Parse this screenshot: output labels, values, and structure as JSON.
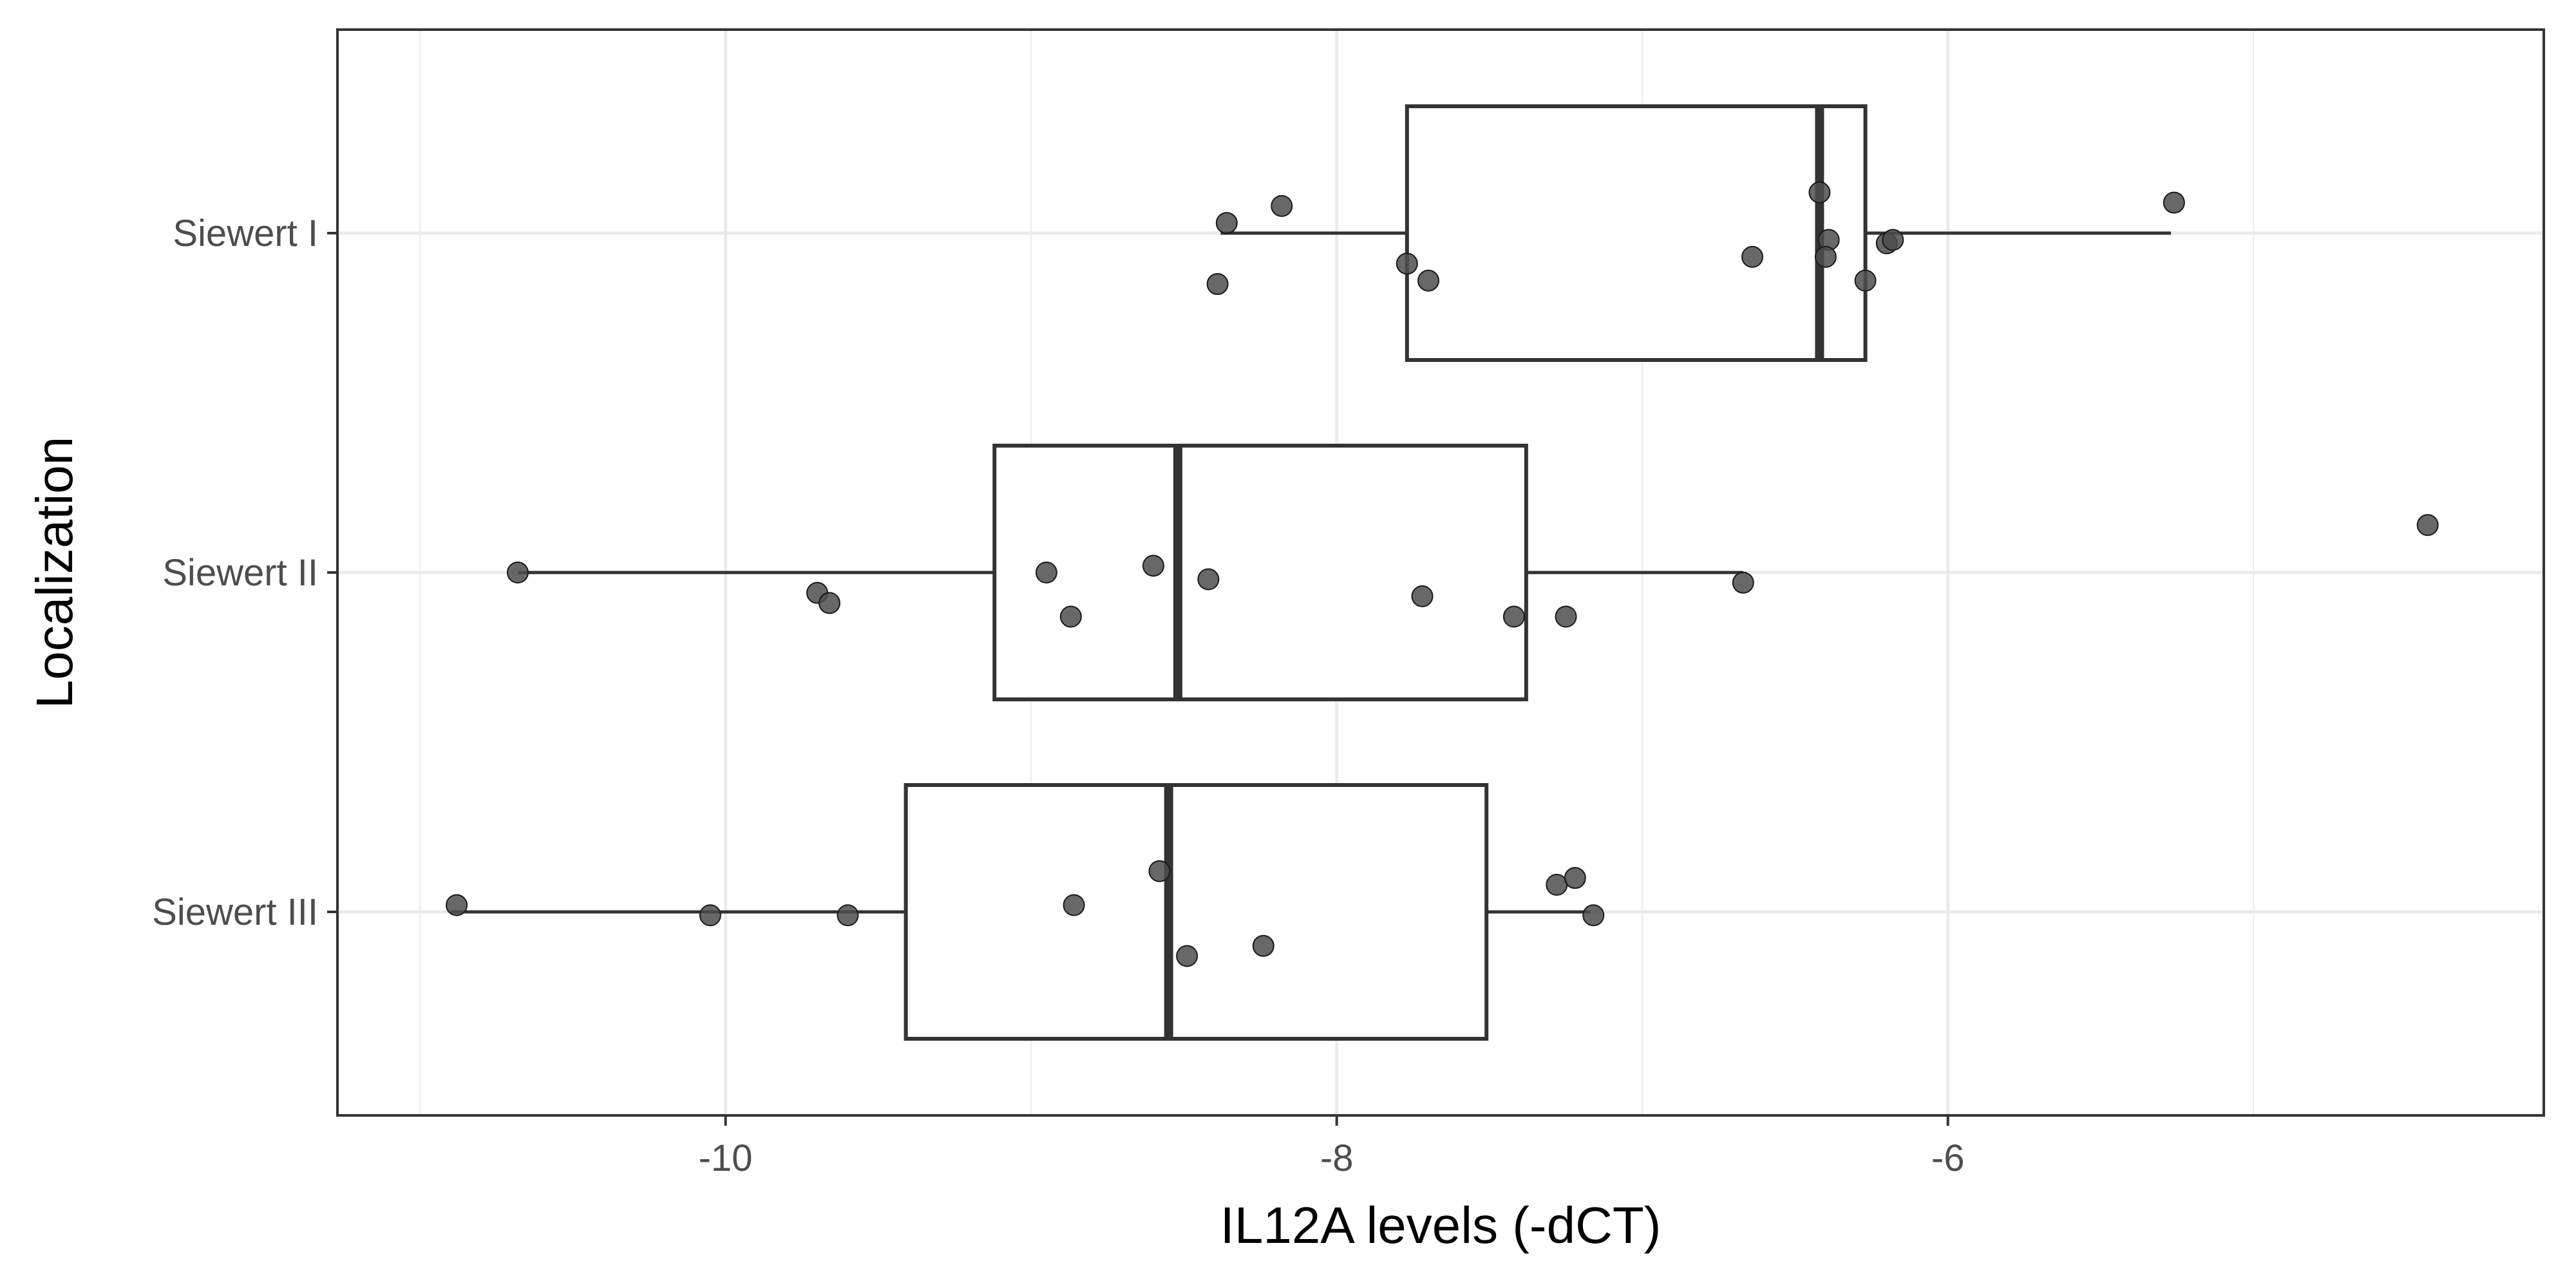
{
  "chart_data": {
    "type": "boxplot",
    "orientation": "horizontal",
    "xlabel": "IL12A levels (-dCT)",
    "ylabel": "Localization",
    "xlim": [
      -11.27,
      -4.05
    ],
    "xticks": [
      -10,
      -8,
      -6
    ],
    "xtick_labels": [
      "-10",
      "-8",
      "-6"
    ],
    "minor_gridlines": [
      -11,
      -9,
      -7,
      -5
    ],
    "grid": true,
    "categories": [
      "Siewert I",
      "Siewert II",
      "Siewert III"
    ],
    "boxes": [
      {
        "category": "Siewert I",
        "whisker_low": -8.38,
        "q1": -7.77,
        "median": -6.42,
        "q3": -6.27,
        "whisker_high": -5.27,
        "outliers": []
      },
      {
        "category": "Siewert II",
        "whisker_low": -10.68,
        "q1": -9.12,
        "median": -8.52,
        "q3": -7.38,
        "whisker_high": -6.67,
        "outliers": [
          -4.43
        ]
      },
      {
        "category": "Siewert III",
        "whisker_low": -10.9,
        "q1": -9.41,
        "median": -8.55,
        "q3": -7.51,
        "whisker_high": -7.17,
        "outliers": []
      }
    ],
    "points": [
      {
        "category": "Siewert I",
        "x": -8.36,
        "jitter": 0.03
      },
      {
        "category": "Siewert I",
        "x": -8.18,
        "jitter": 0.08
      },
      {
        "category": "Siewert I",
        "x": -8.39,
        "jitter": -0.15
      },
      {
        "category": "Siewert I",
        "x": -7.77,
        "jitter": -0.09
      },
      {
        "category": "Siewert I",
        "x": -7.7,
        "jitter": -0.14
      },
      {
        "category": "Siewert I",
        "x": -6.64,
        "jitter": -0.07
      },
      {
        "category": "Siewert I",
        "x": -6.42,
        "jitter": 0.12
      },
      {
        "category": "Siewert I",
        "x": -6.39,
        "jitter": -0.02
      },
      {
        "category": "Siewert I",
        "x": -6.4,
        "jitter": -0.07
      },
      {
        "category": "Siewert I",
        "x": -6.27,
        "jitter": -0.14
      },
      {
        "category": "Siewert I",
        "x": -6.2,
        "jitter": -0.03
      },
      {
        "category": "Siewert I",
        "x": -6.18,
        "jitter": -0.02
      },
      {
        "category": "Siewert I",
        "x": -5.26,
        "jitter": 0.09
      },
      {
        "category": "Siewert II",
        "x": -10.68,
        "jitter": 0.0
      },
      {
        "category": "Siewert II",
        "x": -9.7,
        "jitter": -0.06
      },
      {
        "category": "Siewert II",
        "x": -9.66,
        "jitter": -0.09
      },
      {
        "category": "Siewert II",
        "x": -8.95,
        "jitter": 0.0
      },
      {
        "category": "Siewert II",
        "x": -8.87,
        "jitter": -0.13
      },
      {
        "category": "Siewert II",
        "x": -8.6,
        "jitter": 0.02
      },
      {
        "category": "Siewert II",
        "x": -8.42,
        "jitter": -0.02
      },
      {
        "category": "Siewert II",
        "x": -7.72,
        "jitter": -0.07
      },
      {
        "category": "Siewert II",
        "x": -7.42,
        "jitter": -0.13
      },
      {
        "category": "Siewert II",
        "x": -7.25,
        "jitter": -0.13
      },
      {
        "category": "Siewert II",
        "x": -6.67,
        "jitter": -0.03
      },
      {
        "category": "Siewert II",
        "x": -4.43,
        "jitter": 0.14
      },
      {
        "category": "Siewert III",
        "x": -10.88,
        "jitter": 0.02
      },
      {
        "category": "Siewert III",
        "x": -10.05,
        "jitter": -0.01
      },
      {
        "category": "Siewert III",
        "x": -9.6,
        "jitter": -0.01
      },
      {
        "category": "Siewert III",
        "x": -8.86,
        "jitter": 0.02
      },
      {
        "category": "Siewert III",
        "x": -8.58,
        "jitter": 0.12
      },
      {
        "category": "Siewert III",
        "x": -8.49,
        "jitter": -0.13
      },
      {
        "category": "Siewert III",
        "x": -8.24,
        "jitter": -0.1
      },
      {
        "category": "Siewert III",
        "x": -7.28,
        "jitter": 0.08
      },
      {
        "category": "Siewert III",
        "x": -7.22,
        "jitter": 0.1
      },
      {
        "category": "Siewert III",
        "x": -7.16,
        "jitter": -0.01
      }
    ],
    "colors": {
      "panel_border": "#333333",
      "box_stroke": "#333333",
      "grid": "#ebebeb",
      "point_fill": "#4d4d4d",
      "point_stroke": "#1a1a1a",
      "tick_mark": "#333333",
      "tick_text": "#4d4d4d"
    }
  }
}
